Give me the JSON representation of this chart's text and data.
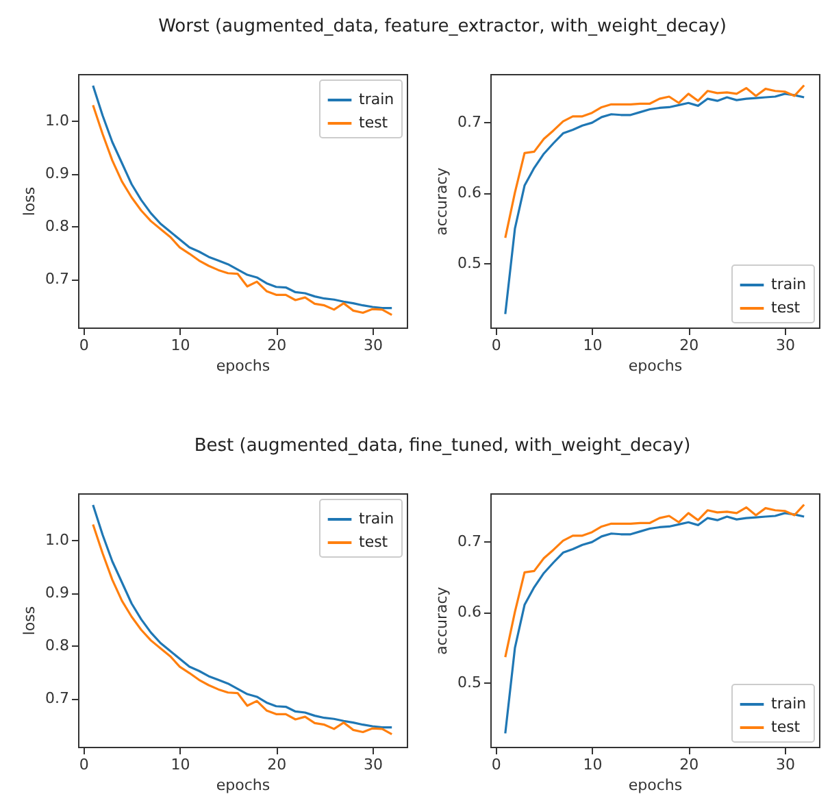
{
  "chart_data": [
    {
      "type": "line",
      "title": "Worst (augmented_data, feature_extractor, with_weight_decay)",
      "xlabel": "epochs",
      "ylabel": "loss",
      "x": [
        1,
        2,
        3,
        4,
        5,
        6,
        7,
        8,
        9,
        10,
        11,
        12,
        13,
        14,
        15,
        16,
        17,
        18,
        19,
        20,
        21,
        22,
        23,
        24,
        25,
        26,
        27,
        28,
        29,
        30,
        31,
        32
      ],
      "xlim": [
        -0.55,
        33.55
      ],
      "xticks": [
        0,
        10,
        20,
        30
      ],
      "ylim": [
        0.608,
        1.089
      ],
      "yticks": [
        0.7,
        0.8,
        0.9,
        {
          "value": 1.0,
          "label": "1.0"
        }
      ],
      "legend": "top right",
      "series": [
        {
          "name": "train",
          "color": "#1f77b4",
          "values": [
            1.067,
            1.01,
            0.96,
            0.92,
            0.88,
            0.85,
            0.825,
            0.805,
            0.79,
            0.775,
            0.76,
            0.752,
            0.742,
            0.735,
            0.728,
            0.718,
            0.708,
            0.703,
            0.692,
            0.685,
            0.684,
            0.675,
            0.673,
            0.667,
            0.663,
            0.661,
            0.657,
            0.654,
            0.65,
            0.647,
            0.645,
            0.645
          ]
        },
        {
          "name": "test",
          "color": "#ff7f0e",
          "values": [
            1.03,
            0.975,
            0.925,
            0.885,
            0.855,
            0.83,
            0.81,
            0.795,
            0.78,
            0.76,
            0.748,
            0.735,
            0.725,
            0.717,
            0.711,
            0.71,
            0.686,
            0.695,
            0.677,
            0.67,
            0.67,
            0.66,
            0.665,
            0.653,
            0.65,
            0.642,
            0.654,
            0.64,
            0.636,
            0.643,
            0.642,
            0.632
          ]
        }
      ]
    },
    {
      "type": "line",
      "xlabel": "epochs",
      "ylabel": "accuracy",
      "x": [
        1,
        2,
        3,
        4,
        5,
        6,
        7,
        8,
        9,
        10,
        11,
        12,
        13,
        14,
        15,
        16,
        17,
        18,
        19,
        20,
        21,
        22,
        23,
        24,
        25,
        26,
        27,
        28,
        29,
        30,
        31,
        32
      ],
      "xlim": [
        -0.55,
        33.55
      ],
      "xticks": [
        0,
        10,
        20,
        30
      ],
      "ylim": [
        0.409,
        0.768
      ],
      "yticks": [
        0.5,
        0.6,
        0.7
      ],
      "legend": "bottom right",
      "series": [
        {
          "name": "train",
          "color": "#1f77b4",
          "values": [
            0.428,
            0.549,
            0.61,
            0.635,
            0.655,
            0.67,
            0.684,
            0.689,
            0.695,
            0.699,
            0.707,
            0.711,
            0.71,
            0.71,
            0.714,
            0.718,
            0.72,
            0.721,
            0.724,
            0.727,
            0.723,
            0.733,
            0.73,
            0.735,
            0.731,
            0.733,
            0.734,
            0.735,
            0.736,
            0.74,
            0.738,
            0.735
          ]
        },
        {
          "name": "test",
          "color": "#ff7f0e",
          "values": [
            0.536,
            0.6,
            0.656,
            0.658,
            0.676,
            0.688,
            0.701,
            0.708,
            0.708,
            0.713,
            0.721,
            0.725,
            0.725,
            0.725,
            0.726,
            0.726,
            0.733,
            0.736,
            0.727,
            0.74,
            0.73,
            0.744,
            0.741,
            0.742,
            0.74,
            0.748,
            0.737,
            0.747,
            0.744,
            0.743,
            0.737,
            0.752
          ]
        }
      ]
    },
    {
      "type": "line",
      "title": "Best (augmented_data, fine_tuned, with_weight_decay)",
      "xlabel": "epochs",
      "ylabel": "loss",
      "x": [
        1,
        2,
        3,
        4,
        5,
        6,
        7,
        8,
        9,
        10,
        11,
        12,
        13,
        14,
        15,
        16,
        17,
        18,
        19,
        20,
        21,
        22,
        23,
        24,
        25,
        26,
        27,
        28,
        29,
        30,
        31,
        32
      ],
      "xlim": [
        -0.55,
        33.55
      ],
      "xticks": [
        0,
        10,
        20,
        30
      ],
      "ylim": [
        0.608,
        1.089
      ],
      "yticks": [
        0.7,
        0.8,
        0.9,
        {
          "value": 1.0,
          "label": "1.0"
        }
      ],
      "legend": "top right",
      "series": [
        {
          "name": "train",
          "color": "#1f77b4",
          "values": [
            1.067,
            1.01,
            0.96,
            0.92,
            0.88,
            0.85,
            0.825,
            0.805,
            0.79,
            0.775,
            0.76,
            0.752,
            0.742,
            0.735,
            0.728,
            0.718,
            0.708,
            0.703,
            0.692,
            0.685,
            0.684,
            0.675,
            0.673,
            0.667,
            0.663,
            0.661,
            0.657,
            0.654,
            0.65,
            0.647,
            0.645,
            0.645
          ]
        },
        {
          "name": "test",
          "color": "#ff7f0e",
          "values": [
            1.03,
            0.975,
            0.925,
            0.885,
            0.855,
            0.83,
            0.81,
            0.795,
            0.78,
            0.76,
            0.748,
            0.735,
            0.725,
            0.717,
            0.711,
            0.71,
            0.686,
            0.695,
            0.677,
            0.67,
            0.67,
            0.66,
            0.665,
            0.653,
            0.65,
            0.642,
            0.654,
            0.64,
            0.636,
            0.643,
            0.642,
            0.632
          ]
        }
      ]
    },
    {
      "type": "line",
      "xlabel": "epochs",
      "ylabel": "accuracy",
      "x": [
        1,
        2,
        3,
        4,
        5,
        6,
        7,
        8,
        9,
        10,
        11,
        12,
        13,
        14,
        15,
        16,
        17,
        18,
        19,
        20,
        21,
        22,
        23,
        24,
        25,
        26,
        27,
        28,
        29,
        30,
        31,
        32
      ],
      "xlim": [
        -0.55,
        33.55
      ],
      "xticks": [
        0,
        10,
        20,
        30
      ],
      "ylim": [
        0.409,
        0.768
      ],
      "yticks": [
        0.5,
        0.6,
        0.7
      ],
      "legend": "bottom right",
      "series": [
        {
          "name": "train",
          "color": "#1f77b4",
          "values": [
            0.428,
            0.549,
            0.61,
            0.635,
            0.655,
            0.67,
            0.684,
            0.689,
            0.695,
            0.699,
            0.707,
            0.711,
            0.71,
            0.71,
            0.714,
            0.718,
            0.72,
            0.721,
            0.724,
            0.727,
            0.723,
            0.733,
            0.73,
            0.735,
            0.731,
            0.733,
            0.734,
            0.735,
            0.736,
            0.74,
            0.738,
            0.735
          ]
        },
        {
          "name": "test",
          "color": "#ff7f0e",
          "values": [
            0.536,
            0.6,
            0.656,
            0.658,
            0.676,
            0.688,
            0.701,
            0.708,
            0.708,
            0.713,
            0.721,
            0.725,
            0.725,
            0.725,
            0.726,
            0.726,
            0.733,
            0.736,
            0.727,
            0.74,
            0.73,
            0.744,
            0.741,
            0.742,
            0.74,
            0.748,
            0.737,
            0.747,
            0.744,
            0.743,
            0.737,
            0.752
          ]
        }
      ]
    }
  ]
}
